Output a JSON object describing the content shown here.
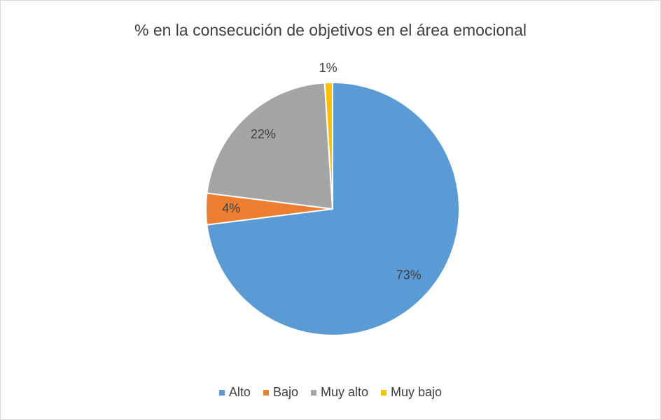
{
  "chart_data": {
    "type": "pie",
    "title": "% en la consecución de objetivos en el área emocional",
    "categories": [
      "Alto",
      "Bajo",
      "Muy alto",
      "Muy bajo"
    ],
    "values": [
      73,
      4,
      22,
      1
    ],
    "value_labels": [
      "73%",
      "4%",
      "22%",
      "1%"
    ],
    "colors": [
      "#5b9bd5",
      "#ed7d31",
      "#a5a5a5",
      "#ffc000"
    ],
    "legend": "bottom"
  }
}
